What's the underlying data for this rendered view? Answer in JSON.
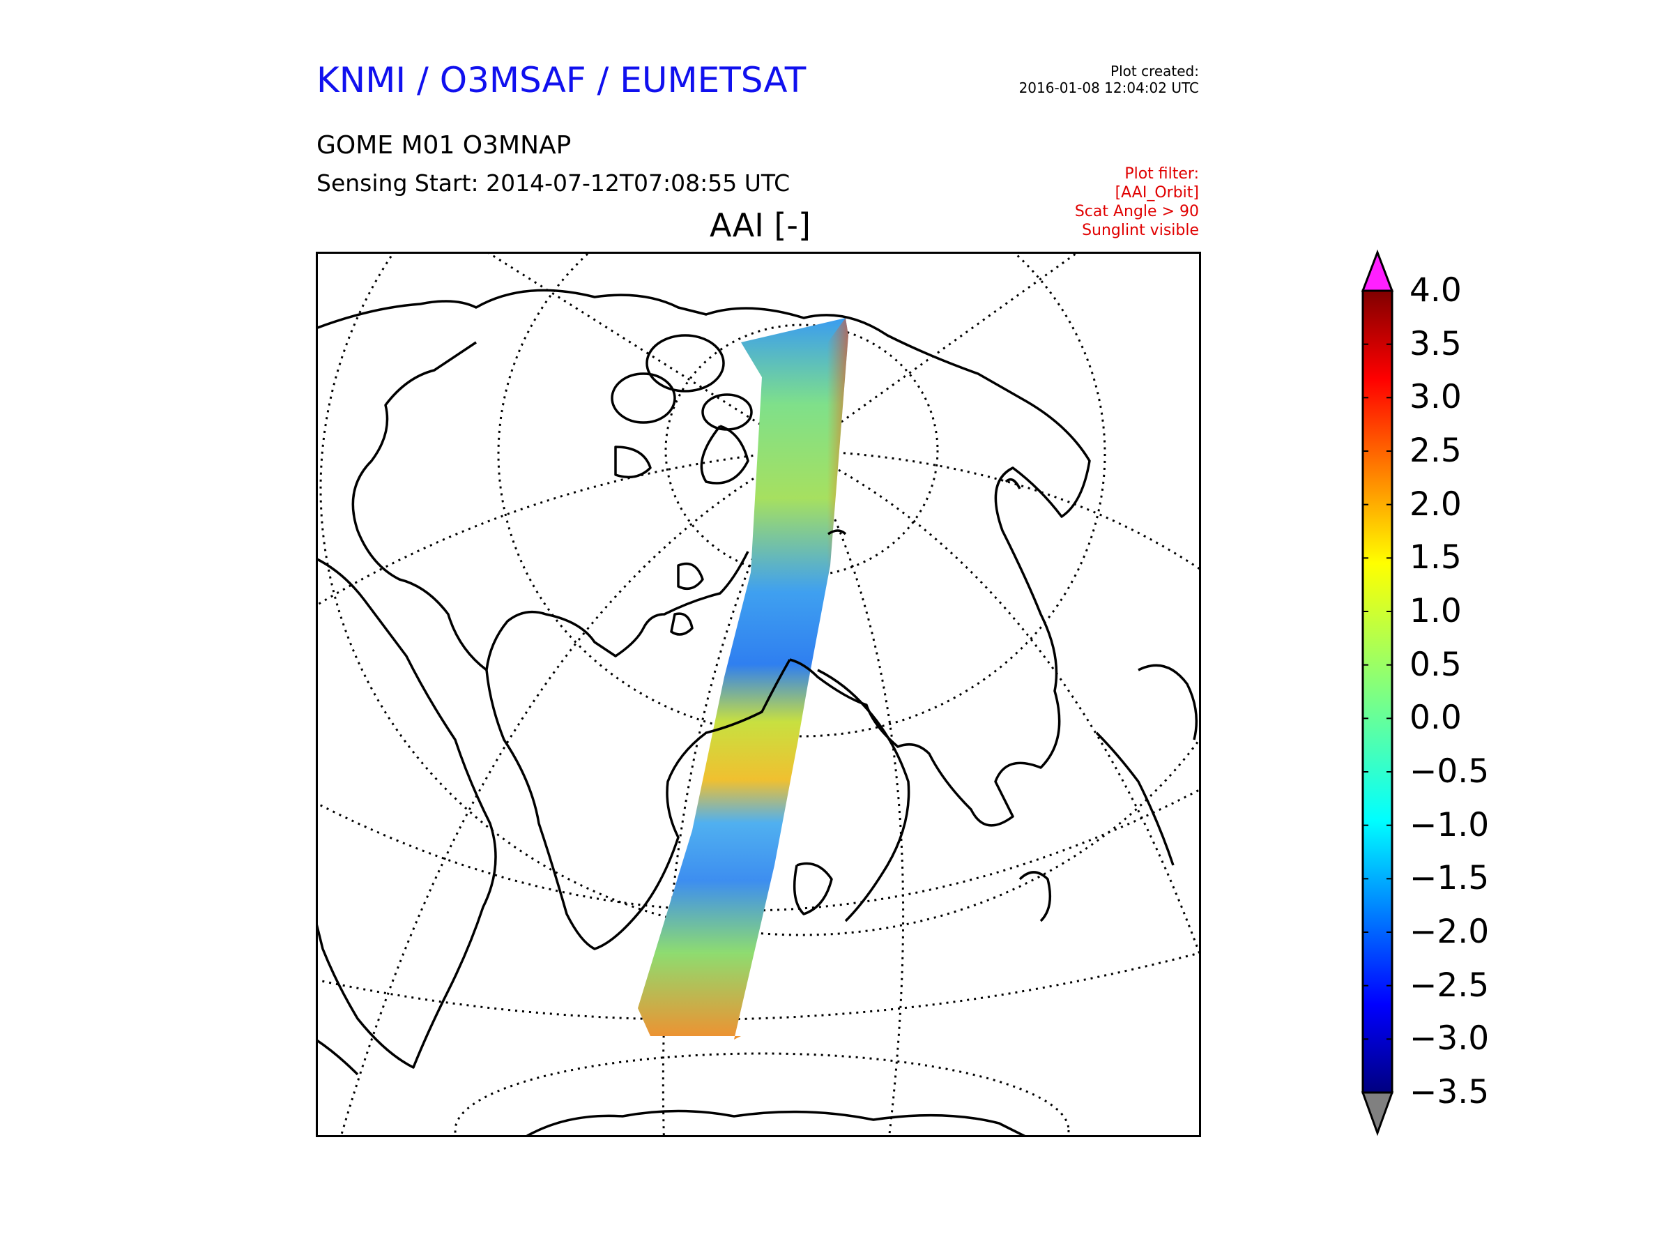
{
  "header": {
    "org_title": "KNMI / O3MSAF / EUMETSAT",
    "created_label": "Plot created:",
    "created_value": "2016-01-08 12:04:02 UTC",
    "product": "GOME M01 O3MNAP",
    "sensing_start": "Sensing Start: 2014-07-12T07:08:55 UTC",
    "map_title": "AAI [-]",
    "filters": [
      "Plot filter:",
      "[AAI_Orbit]",
      "Scat Angle > 90",
      "Sunglint visible"
    ]
  },
  "map": {
    "projection": "orthographic",
    "graticule": "dotted",
    "coastlines": true,
    "swath": "single GOME-2 orbit from the Arctic to the South Atlantic"
  },
  "colorbar": {
    "colormap": "jet",
    "min": -3.5,
    "max": 4.0,
    "over_color": "#ff20ff",
    "under_color": "#808080",
    "ticks": [
      "4.0",
      "3.5",
      "3.0",
      "2.5",
      "2.0",
      "1.5",
      "1.0",
      "0.5",
      "0.0",
      "−0.5",
      "−1.0",
      "−1.5",
      "−2.0",
      "−2.5",
      "−3.0",
      "−3.5"
    ]
  }
}
